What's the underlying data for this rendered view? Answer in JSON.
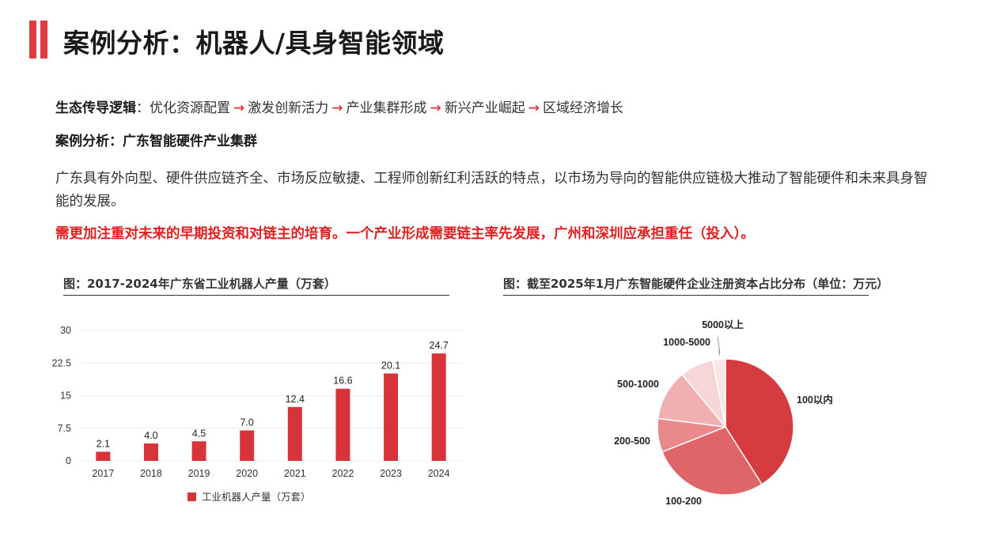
{
  "header": {
    "title": "案例分析：机器人/具身智能领域",
    "accent_color": "#e0393e"
  },
  "logic": {
    "label": "生态传导逻辑",
    "sep": "：",
    "steps": [
      "优化资源配置",
      "激发创新活力",
      "产业集群形成",
      "新兴产业崛起",
      "区域经济增长"
    ],
    "arrow": "→"
  },
  "case": {
    "heading": "案例分析：广东智能硬件产业集群",
    "body": "广东具有外向型、硬件供应链齐全、市场反应敏捷、工程师创新红利活跃的特点，以市场为导向的智能供应链极大推动了智能硬件和未来具身智能的发展。",
    "emphasis": "需更加注重对未来的早期投资和对链主的培育。一个产业形成需要链主率先发展，广州和深圳应承担重任（投入）。",
    "emphasis_color": "#e02020"
  },
  "figures": {
    "bar_caption": "图：2017-2024年广东省工业机器人产量（万套）",
    "pie_caption": "图：截至2025年1月广东智能硬件企业注册资本占比分布（单位：万元）"
  },
  "chart_data": [
    {
      "type": "bar",
      "categories": [
        "2017",
        "2018",
        "2019",
        "2020",
        "2021",
        "2022",
        "2023",
        "2024"
      ],
      "series": [
        {
          "name": "工业机器人产量（万套）",
          "values": [
            2.1,
            4.0,
            4.5,
            7.0,
            12.4,
            16.6,
            20.1,
            24.7
          ],
          "color": "#d63438"
        }
      ],
      "data_labels": [
        "2.1",
        "4.0",
        "4.5",
        "7.0",
        "12.4",
        "16.6",
        "20.1",
        "24.7"
      ],
      "ylim": [
        0,
        30
      ],
      "yticks": [
        "0",
        "7.5",
        "15",
        "22.5",
        "30"
      ],
      "ytick_values": [
        0,
        7.5,
        15,
        22.5,
        30
      ],
      "grid": true,
      "legend": "bottom"
    },
    {
      "type": "pie",
      "labels": [
        "100以内",
        "100-200",
        "200-500",
        "500-1000",
        "1000-5000",
        "5000以上"
      ],
      "values": [
        41,
        28,
        8,
        12,
        8,
        3
      ],
      "colors": [
        "#d63b40",
        "#e06568",
        "#e9898b",
        "#f0b0b2",
        "#f6d6d7",
        "#f9e6e6"
      ]
    }
  ]
}
